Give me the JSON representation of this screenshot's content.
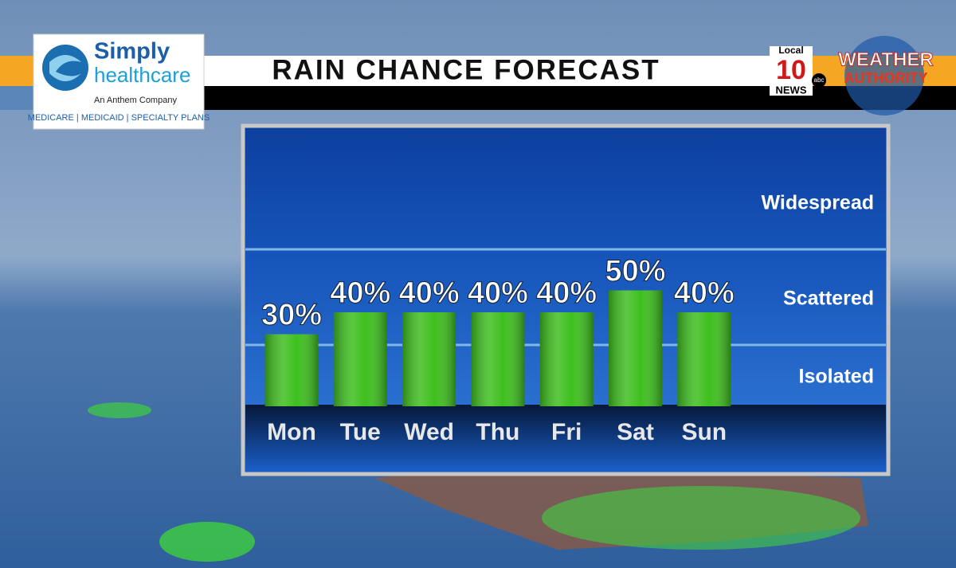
{
  "chart_data": {
    "type": "bar",
    "title": "RAIN CHANCE FORECAST",
    "categories": [
      "Mon",
      "Tue",
      "Wed",
      "Thu",
      "Fri",
      "Sat",
      "Sun"
    ],
    "values": [
      30,
      40,
      40,
      40,
      40,
      50,
      40
    ],
    "value_labels": [
      "30%",
      "40%",
      "40%",
      "40%",
      "40%",
      "50%",
      "40%"
    ],
    "color": "#3fbf1f",
    "bands": [
      "Isolated",
      "Scattered",
      "Widespread"
    ]
  },
  "branding": {
    "sponsor": {
      "name": "Simply",
      "name2": "healthcare",
      "tagline": "An Anthem Company",
      "plans": "MEDICARE | MEDICAID | SPECIALTY PLANS"
    },
    "station": {
      "local": "Local",
      "number": "10",
      "network": "abc",
      "news": "NEWS",
      "brand1": "WEATHER",
      "brand2": "AUTHORITY"
    }
  }
}
